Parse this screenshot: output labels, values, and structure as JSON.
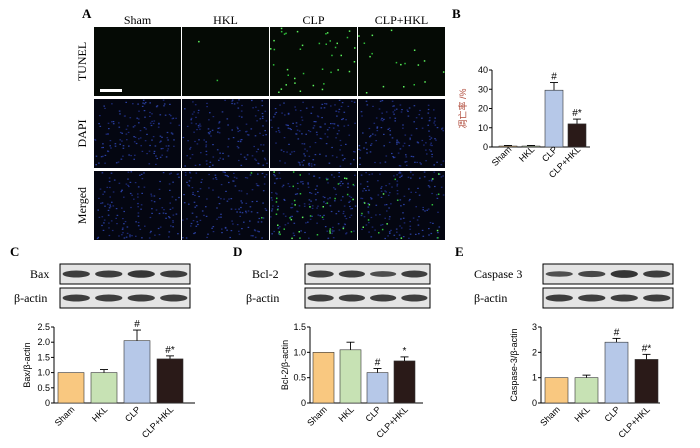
{
  "panel_letters": {
    "A": "A",
    "B": "B",
    "C": "C",
    "D": "D",
    "E": "E"
  },
  "micro": {
    "columns": [
      "Sham",
      "HKL",
      "CLP",
      "CLP+HKL"
    ],
    "rows": [
      "TUNEL",
      "DAPI",
      "Merged"
    ]
  },
  "blots": [
    {
      "letter_key": "C",
      "protein": "Bax",
      "loading": "β-actin"
    },
    {
      "letter_key": "D",
      "protein": "Bcl-2",
      "loading": "β-actin"
    },
    {
      "letter_key": "E",
      "protein": "Caspase 3",
      "loading": "β-actin"
    }
  ],
  "colors": {
    "Sham": "#f9c880",
    "HKL": "#c7e2b4",
    "CLP": "#b6c8e8",
    "CLP+HKL": "#2a1a18"
  },
  "chart_data": [
    {
      "id": "B",
      "type": "bar",
      "categories": [
        "Sham",
        "HKL",
        "CLP",
        "CLP+HKL"
      ],
      "values": [
        0.5,
        0.5,
        29.5,
        12
      ],
      "errors": [
        0.3,
        0.3,
        4,
        2.5
      ],
      "annotations": [
        "",
        "",
        "#",
        "#*"
      ],
      "ylabel": "凋亡率 /%",
      "ylim": [
        0,
        40
      ],
      "yticks": [
        0,
        10,
        20,
        30,
        40
      ]
    },
    {
      "id": "C",
      "type": "bar",
      "categories": [
        "Sham",
        "HKL",
        "CLP",
        "CLP+HKL"
      ],
      "values": [
        1.0,
        1.0,
        2.05,
        1.45
      ],
      "errors": [
        0,
        0.1,
        0.35,
        0.1
      ],
      "annotations": [
        "",
        "",
        "#",
        "#*"
      ],
      "ylabel": "Bax/β-actin",
      "ylim": [
        0,
        2.5
      ],
      "yticks": [
        0,
        0.5,
        1.0,
        1.5,
        2.0,
        2.5
      ],
      "yticklabels": [
        "0",
        "0.5",
        "1.0",
        "1.5",
        "2.0",
        "2.5"
      ]
    },
    {
      "id": "D",
      "type": "bar",
      "categories": [
        "Sham",
        "HKL",
        "CLP",
        "CLP+HKL"
      ],
      "values": [
        1.0,
        1.05,
        0.6,
        0.83
      ],
      "errors": [
        0,
        0.15,
        0.08,
        0.08
      ],
      "annotations": [
        "",
        "",
        "#",
        "*"
      ],
      "ylabel": "Bcl-2/β-actin",
      "ylim": [
        0,
        1.5
      ],
      "yticks": [
        0,
        0.5,
        1.0,
        1.5
      ],
      "yticklabels": [
        "0",
        "0.5",
        "1.0",
        "1.5"
      ]
    },
    {
      "id": "E",
      "type": "bar",
      "categories": [
        "Sham",
        "HKL",
        "CLP",
        "CLP+HKL"
      ],
      "values": [
        1.0,
        1.0,
        2.4,
        1.72
      ],
      "errors": [
        0,
        0.1,
        0.15,
        0.2
      ],
      "annotations": [
        "",
        "",
        "#",
        "#*"
      ],
      "ylabel": "Caspase-3/β-actin",
      "ylim": [
        0,
        3
      ],
      "yticks": [
        0,
        1,
        2,
        3
      ],
      "yticklabels": [
        "0",
        "1",
        "2",
        "3"
      ]
    }
  ]
}
